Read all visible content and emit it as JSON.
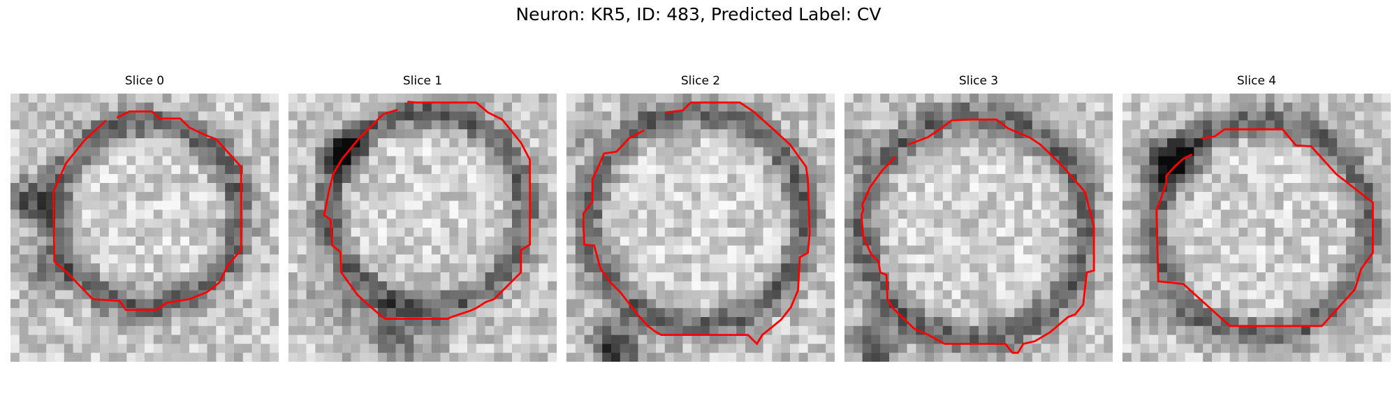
{
  "figure": {
    "title": "Neuron: KR5, ID: 483, Predicted Label: CV"
  },
  "panels": [
    {
      "title": "Slice 0"
    },
    {
      "title": "Slice 1"
    },
    {
      "title": "Slice 2"
    },
    {
      "title": "Slice 3"
    },
    {
      "title": "Slice 4"
    }
  ],
  "colors": {
    "contour": "#ff0000",
    "background": "#ffffff"
  }
}
